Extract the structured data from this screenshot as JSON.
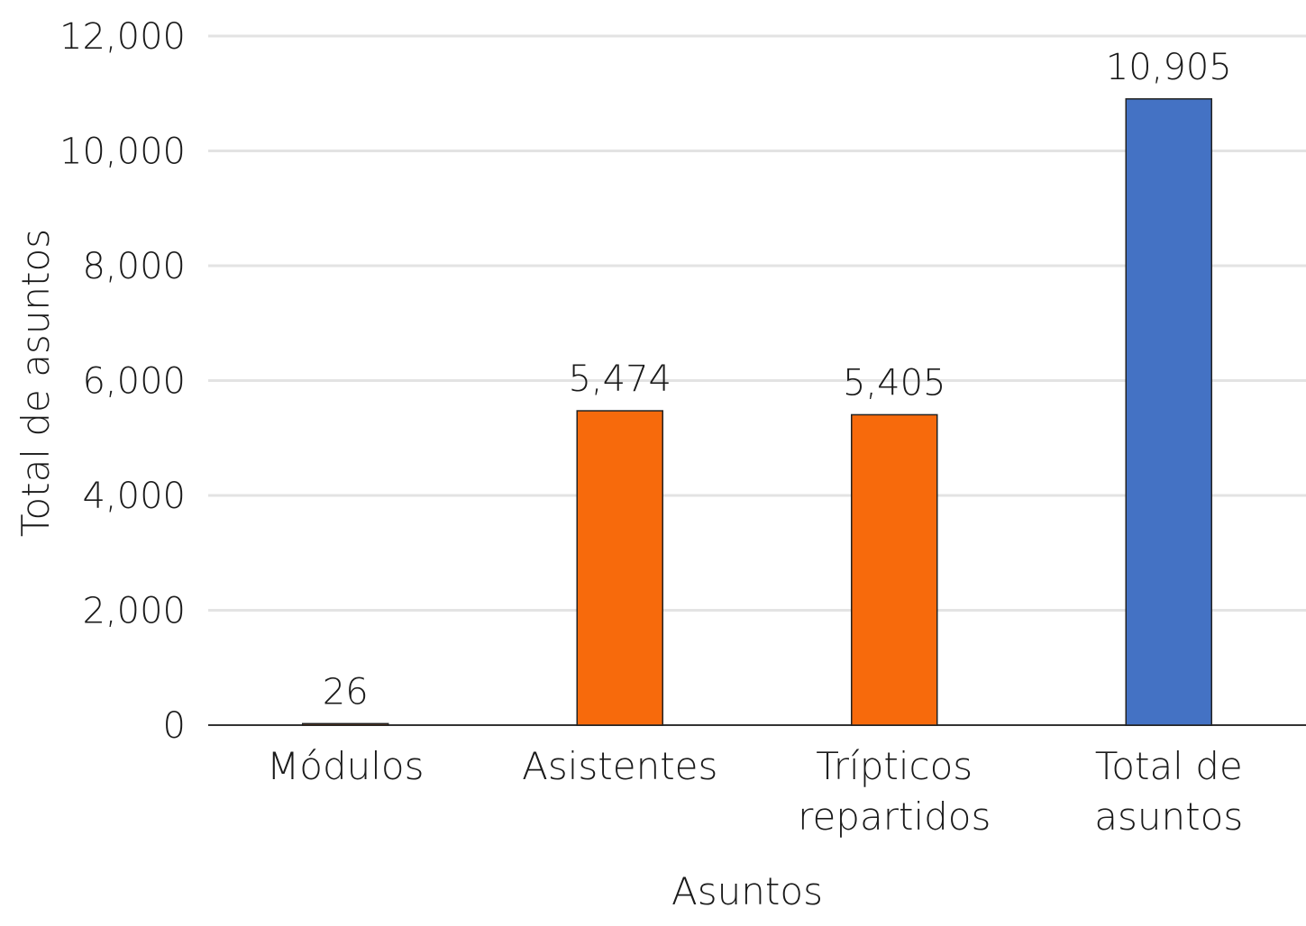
{
  "chart_data": {
    "type": "bar",
    "title": "",
    "xlabel": "Asuntos",
    "ylabel": "Total de asuntos",
    "ylim": [
      0,
      12000
    ],
    "y_ticks": [
      0,
      2000,
      4000,
      6000,
      8000,
      10000,
      12000
    ],
    "y_tick_labels": [
      "0",
      "2,000",
      "4,000",
      "6,000",
      "8,000",
      "10,000",
      "12,000"
    ],
    "grid": true,
    "legend": "none",
    "categories": [
      [
        "Módulos"
      ],
      [
        "Asistentes"
      ],
      [
        "Trípticos",
        "repartidos"
      ],
      [
        "Total de",
        "asuntos"
      ]
    ],
    "values": [
      26,
      5474,
      5405,
      10905
    ],
    "value_labels": [
      "26",
      "5,474",
      "5,405",
      "10,905"
    ],
    "colors": [
      "#f76a0c",
      "#f76a0c",
      "#f76a0c",
      "#4472c4"
    ]
  }
}
